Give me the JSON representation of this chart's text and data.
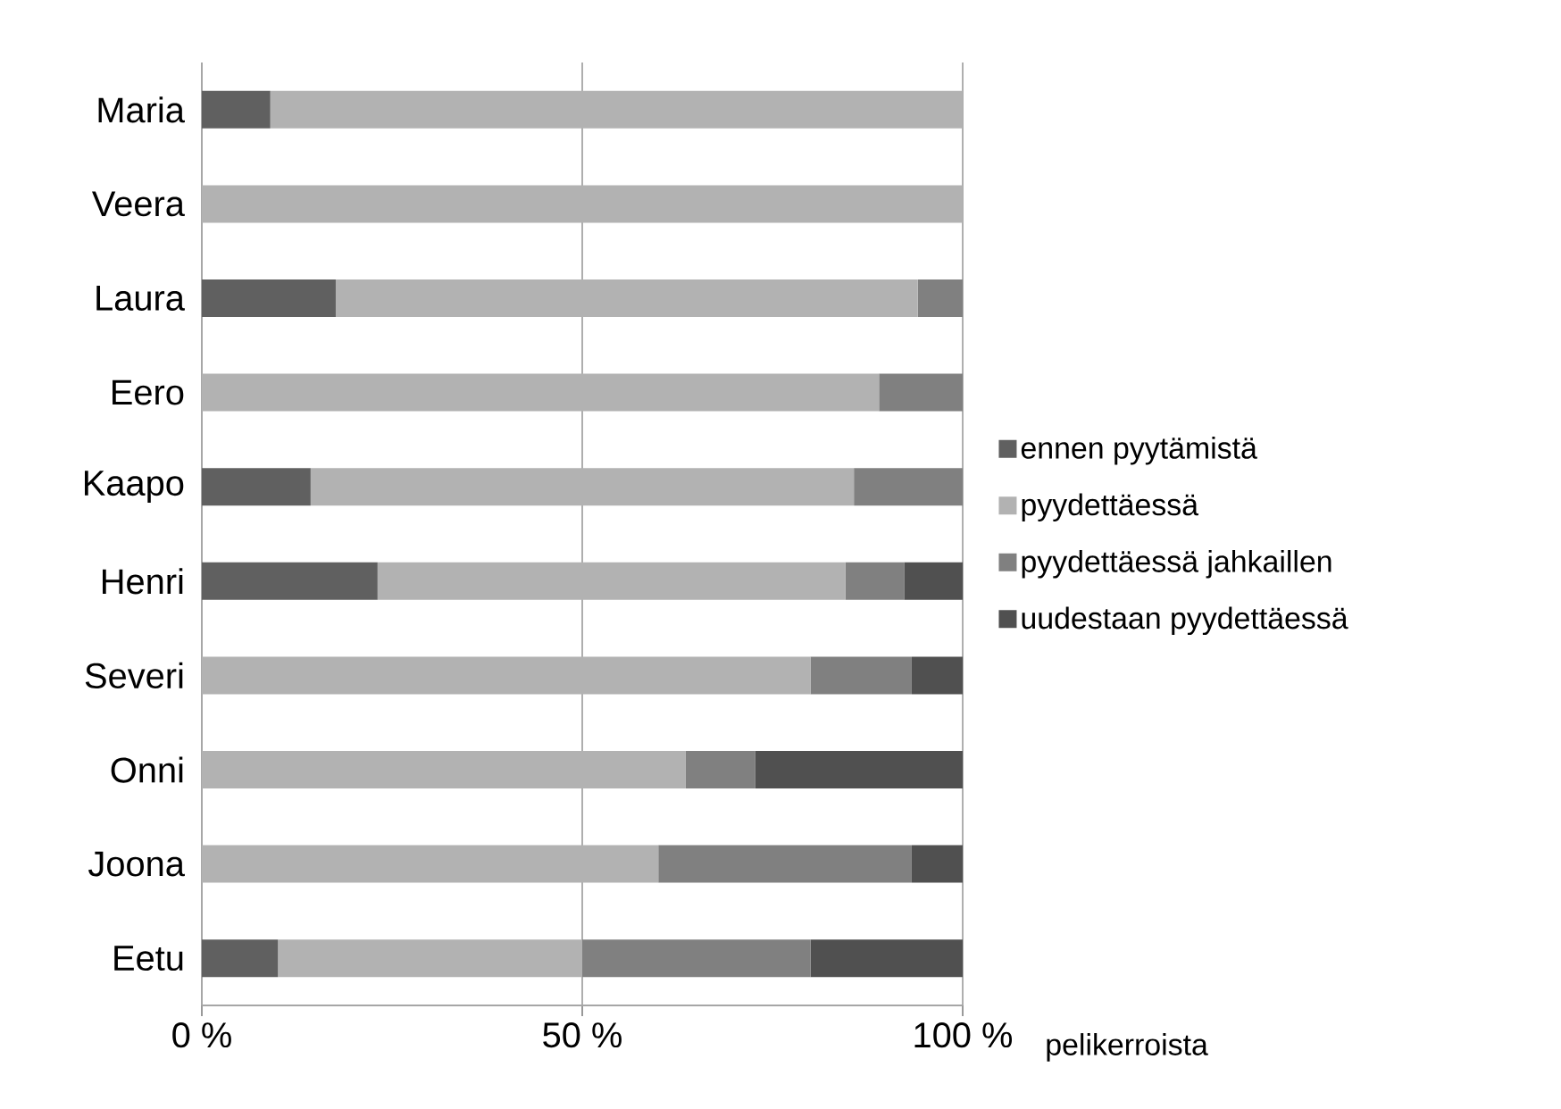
{
  "chart_data": {
    "type": "bar",
    "orientation": "horizontal",
    "stacked": true,
    "categories": [
      "Maria",
      "Veera",
      "Laura",
      "Eero",
      "Kaapo",
      "Henri",
      "Severi",
      "Onni",
      "Joona",
      "Eetu"
    ],
    "series": [
      {
        "name": "ennen pyytämistä",
        "color": "#606060",
        "values": [
          9,
          0,
          17.6,
          0,
          14.3,
          23.1,
          0,
          0,
          0,
          10
        ]
      },
      {
        "name": "pyydettäessä",
        "color": "#b2b2b2",
        "values": [
          91,
          100,
          76.5,
          89,
          71.4,
          61.5,
          80,
          63.6,
          60,
          40
        ]
      },
      {
        "name": "pyydettäessä jahkaillen",
        "color": "#808080",
        "values": [
          0,
          0,
          5.9,
          11,
          14.3,
          7.7,
          13.3,
          9.1,
          33.3,
          30
        ]
      },
      {
        "name": "uudestaan pyydettäessä",
        "color": "#505050",
        "values": [
          0,
          0,
          0,
          0,
          0,
          7.7,
          6.7,
          27.3,
          6.7,
          20
        ]
      }
    ],
    "xlim": [
      0,
      100
    ],
    "xticks": [
      {
        "value": 0,
        "label": "0 %"
      },
      {
        "value": 50,
        "label": "50 %"
      },
      {
        "value": 100,
        "label": "100 %"
      }
    ],
    "xlabel": "pelikerroista",
    "grid": "x",
    "legend": "right"
  }
}
